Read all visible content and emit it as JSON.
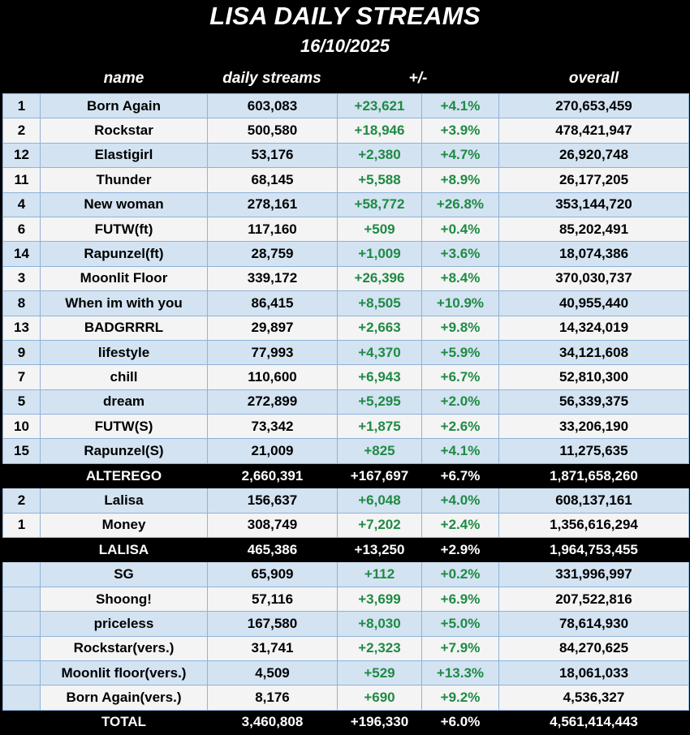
{
  "title": "LISA DAILY STREAMS",
  "date": "16/10/2025",
  "columns": {
    "name": "name",
    "daily": "daily streams",
    "change": "+/-",
    "overall": "overall"
  },
  "groups": [
    {
      "rows": [
        {
          "rank": "1",
          "name": "Born Again",
          "daily": "603,083",
          "diff": "+23,621",
          "pct": "+4.1%",
          "overall": "270,653,459"
        },
        {
          "rank": "2",
          "name": "Rockstar",
          "daily": "500,580",
          "diff": "+18,946",
          "pct": "+3.9%",
          "overall": "478,421,947"
        },
        {
          "rank": "12",
          "name": "Elastigirl",
          "daily": "53,176",
          "diff": "+2,380",
          "pct": "+4.7%",
          "overall": "26,920,748"
        },
        {
          "rank": "11",
          "name": "Thunder",
          "daily": "68,145",
          "diff": "+5,588",
          "pct": "+8.9%",
          "overall": "26,177,205"
        },
        {
          "rank": "4",
          "name": "New woman",
          "daily": "278,161",
          "diff": "+58,772",
          "pct": "+26.8%",
          "overall": "353,144,720"
        },
        {
          "rank": "6",
          "name": "FUTW(ft)",
          "daily": "117,160",
          "diff": "+509",
          "pct": "+0.4%",
          "overall": "85,202,491"
        },
        {
          "rank": "14",
          "name": "Rapunzel(ft)",
          "daily": "28,759",
          "diff": "+1,009",
          "pct": "+3.6%",
          "overall": "18,074,386"
        },
        {
          "rank": "3",
          "name": "Moonlit Floor",
          "daily": "339,172",
          "diff": "+26,396",
          "pct": "+8.4%",
          "overall": "370,030,737"
        },
        {
          "rank": "8",
          "name": "When im with you",
          "daily": "86,415",
          "diff": "+8,505",
          "pct": "+10.9%",
          "overall": "40,955,440"
        },
        {
          "rank": "13",
          "name": "BADGRRRL",
          "daily": "29,897",
          "diff": "+2,663",
          "pct": "+9.8%",
          "overall": "14,324,019"
        },
        {
          "rank": "9",
          "name": "lifestyle",
          "daily": "77,993",
          "diff": "+4,370",
          "pct": "+5.9%",
          "overall": "34,121,608"
        },
        {
          "rank": "7",
          "name": "chill",
          "daily": "110,600",
          "diff": "+6,943",
          "pct": "+6.7%",
          "overall": "52,810,300"
        },
        {
          "rank": "5",
          "name": "dream",
          "daily": "272,899",
          "diff": "+5,295",
          "pct": "+2.0%",
          "overall": "56,339,375"
        },
        {
          "rank": "10",
          "name": "FUTW(S)",
          "daily": "73,342",
          "diff": "+1,875",
          "pct": "+2.6%",
          "overall": "33,206,190"
        },
        {
          "rank": "15",
          "name": "Rapunzel(S)",
          "daily": "21,009",
          "diff": "+825",
          "pct": "+4.1%",
          "overall": "11,275,635"
        }
      ],
      "summary": {
        "name": "ALTEREGO",
        "daily": "2,660,391",
        "diff": "+167,697",
        "pct": "+6.7%",
        "overall": "1,871,658,260"
      }
    },
    {
      "rows": [
        {
          "rank": "2",
          "name": "Lalisa",
          "daily": "156,637",
          "diff": "+6,048",
          "pct": "+4.0%",
          "overall": "608,137,161"
        },
        {
          "rank": "1",
          "name": "Money",
          "daily": "308,749",
          "diff": "+7,202",
          "pct": "+2.4%",
          "overall": "1,356,616,294"
        }
      ],
      "summary": {
        "name": "LALISA",
        "daily": "465,386",
        "diff": "+13,250",
        "pct": "+2.9%",
        "overall": "1,964,753,455"
      }
    },
    {
      "rows": [
        {
          "rank": "",
          "name": "SG",
          "daily": "65,909",
          "diff": "+112",
          "pct": "+0.2%",
          "overall": "331,996,997"
        },
        {
          "rank": "",
          "name": "Shoong!",
          "daily": "57,116",
          "diff": "+3,699",
          "pct": "+6.9%",
          "overall": "207,522,816"
        },
        {
          "rank": "",
          "name": "priceless",
          "daily": "167,580",
          "diff": "+8,030",
          "pct": "+5.0%",
          "overall": "78,614,930"
        },
        {
          "rank": "",
          "name": "Rockstar(vers.)",
          "daily": "31,741",
          "diff": "+2,323",
          "pct": "+7.9%",
          "overall": "84,270,625"
        },
        {
          "rank": "",
          "name": "Moonlit floor(vers.)",
          "daily": "4,509",
          "diff": "+529",
          "pct": "+13.3%",
          "overall": "18,061,033"
        },
        {
          "rank": "",
          "name": "Born Again(vers.)",
          "daily": "8,176",
          "diff": "+690",
          "pct": "+9.2%",
          "overall": "4,536,327"
        }
      ],
      "summary": {
        "name": "TOTAL",
        "daily": "3,460,808",
        "diff": "+196,330",
        "pct": "+6.0%",
        "overall": "4,561,414,443"
      }
    }
  ]
}
